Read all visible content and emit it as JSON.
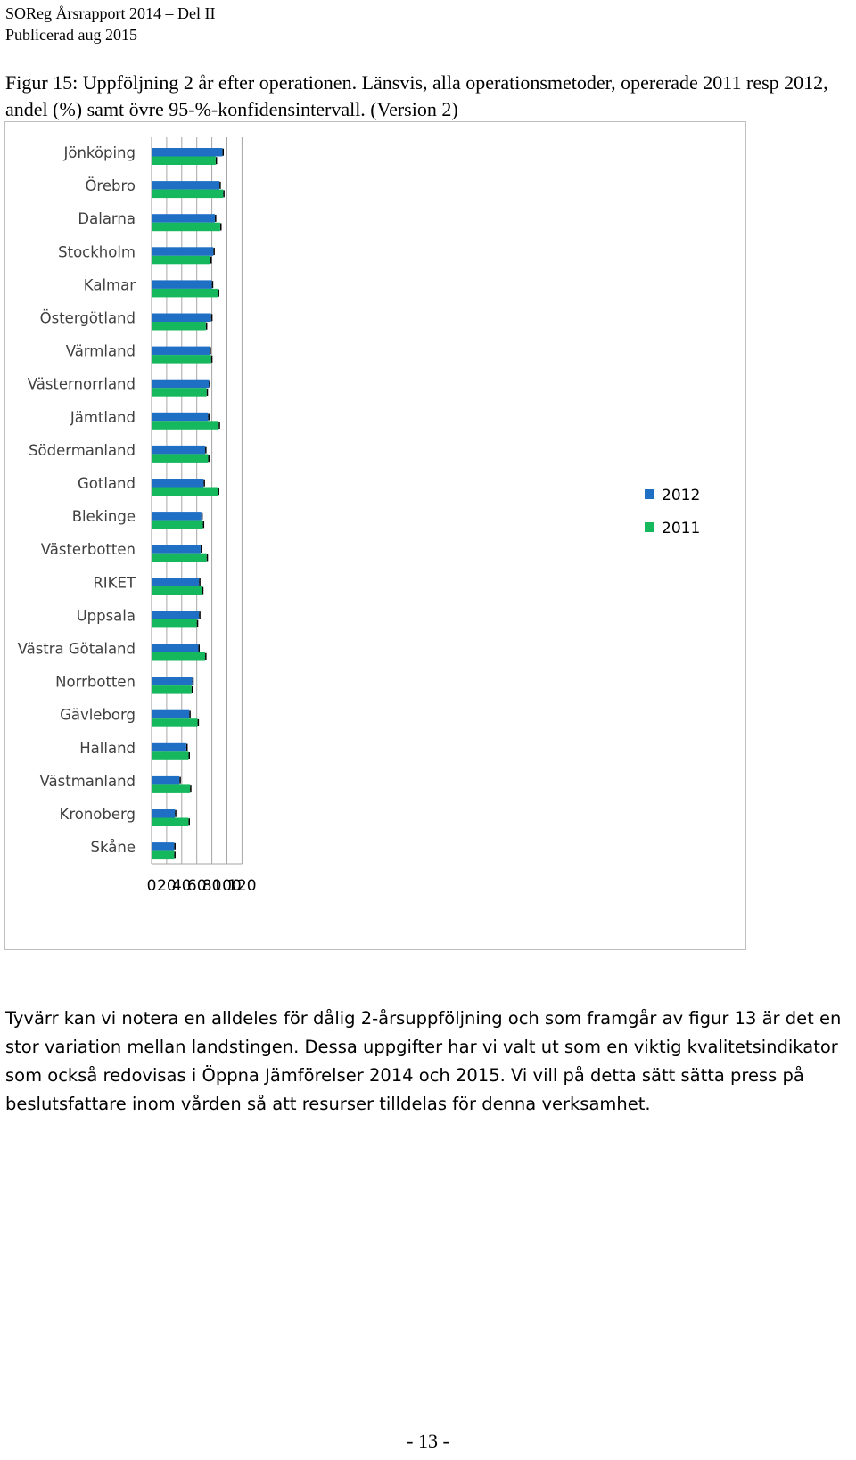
{
  "header": {
    "line1": "SOReg Årsrapport 2014 – Del II",
    "line2": "Publicerad aug 2015"
  },
  "figure_caption": "Figur 15: Uppföljning 2 år efter operationen. Länsvis, alla operationsmetoder, opererade 2011 resp 2012, andel (%) samt övre 95-%-konfidensintervall. (Version 2)",
  "colors": {
    "series_2012": "#1F6FC5",
    "series_2011": "#16B85E",
    "grid": "#a6a6a6",
    "frame": "#bfbfbf"
  },
  "chart_data": {
    "type": "bar",
    "orientation": "horizontal",
    "categories": [
      "Jönköping",
      "Örebro",
      "Dalarna",
      "Stockholm",
      "Kalmar",
      "Östergötland",
      "Värmland",
      "Västernorrland",
      "Jämtland",
      "Södermanland",
      "Gotland",
      "Blekinge",
      "Västerbotten",
      "RIKET",
      "Uppsala",
      "Västra Götaland",
      "Norrbotten",
      "Gävleborg",
      "Halland",
      "Västmanland",
      "Kronoberg",
      "Skåne"
    ],
    "series": [
      {
        "name": "2012",
        "color": "#1F6FC5",
        "values": [
          94,
          90,
          84,
          82,
          80,
          79,
          77,
          76,
          75,
          71,
          69,
          66,
          65,
          63,
          63,
          62,
          54,
          50,
          46,
          37,
          31,
          30
        ],
        "upper_ci": [
          95,
          91,
          85,
          83,
          81,
          80,
          78,
          77,
          76,
          72,
          70,
          67,
          66,
          64,
          64,
          63,
          55,
          51,
          47,
          38,
          32,
          31
        ]
      },
      {
        "name": "2011",
        "color": "#16B85E",
        "values": [
          85,
          95,
          91,
          78,
          88,
          72,
          79,
          73,
          89,
          75,
          88,
          68,
          73,
          67,
          60,
          71,
          53,
          61,
          49,
          51,
          49,
          30
        ],
        "upper_ci": [
          86,
          96,
          92,
          79,
          89,
          73,
          80,
          74,
          90,
          76,
          89,
          69,
          74,
          68,
          61,
          72,
          54,
          62,
          50,
          52,
          50,
          31
        ]
      }
    ],
    "xlim": [
      0,
      120
    ],
    "xticks": [
      "0",
      "20",
      "40",
      "60",
      "80",
      "100",
      "120"
    ],
    "grid": true,
    "legend_position": "right"
  },
  "body_text": "Tyvärr kan vi notera en alldeles för dålig 2-årsuppföljning och som framgår av figur 13 är det en stor variation mellan landstingen. Dessa uppgifter har vi valt ut som en viktig kvalitetsindikator som också redovisas i Öppna Jämförelser 2014 och 2015. Vi vill på detta sätt sätta press på beslutsfattare inom vården så att resurser tilldelas för denna verksamhet.",
  "page_number": "- 13 -"
}
